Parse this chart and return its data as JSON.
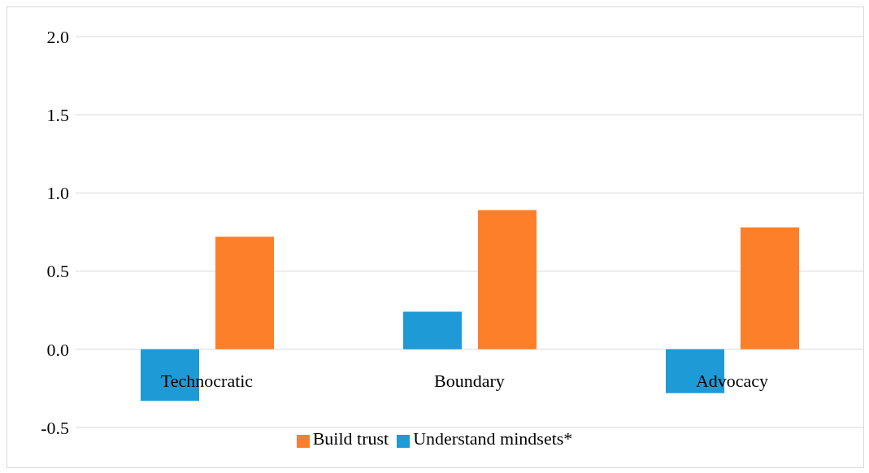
{
  "chart_data": {
    "type": "bar",
    "categories": [
      "Technocratic",
      "Boundary",
      "Advocacy"
    ],
    "series": [
      {
        "name": "Understand mindsets*",
        "color": "#1e9ad6",
        "values": [
          -0.33,
          0.24,
          -0.28
        ]
      },
      {
        "name": "Build trust",
        "color": "#fe7f2a",
        "values": [
          0.72,
          0.89,
          0.78
        ]
      }
    ],
    "ylim": [
      -0.5,
      2.0
    ],
    "yticks": [
      {
        "value": -0.5,
        "label": "-0.5"
      },
      {
        "value": 0,
        "label": "0.0"
      },
      {
        "value": 0.5,
        "label": "0.5"
      },
      {
        "value": 1,
        "label": "1.0"
      },
      {
        "value": 1.5,
        "label": "1.5"
      },
      {
        "value": 2,
        "label": "2.0"
      }
    ],
    "grid": "y",
    "legend": "bottom"
  }
}
